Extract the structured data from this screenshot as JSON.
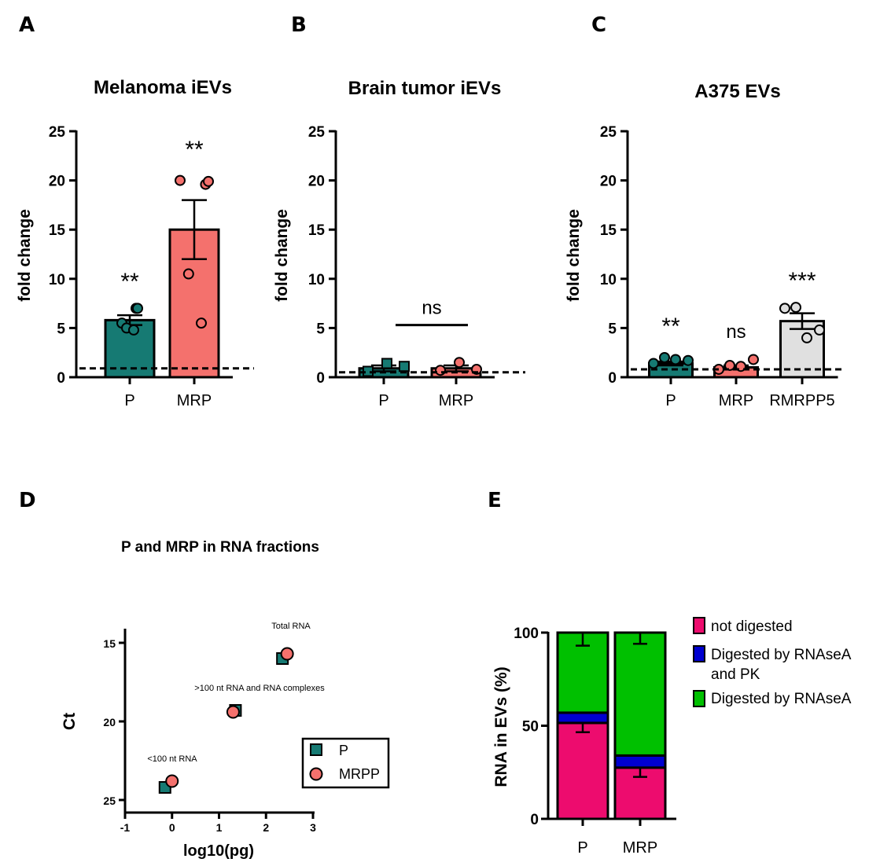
{
  "colors": {
    "teal": "#167a73",
    "salmon": "#f4716d",
    "grey": "#e0e0e0",
    "pink": "#ed0c6e",
    "blue": "#0000d0",
    "green": "#00c000"
  },
  "panels": {
    "A": "A",
    "B": "B",
    "C": "C",
    "D": "D",
    "E": "E"
  },
  "chart_data": [
    {
      "panel": "A",
      "type": "bar",
      "title": "Melanoma iEVs",
      "ylabel": "fold change",
      "ylim": [
        0,
        25
      ],
      "yticks": [
        "0",
        "5",
        "10",
        "15",
        "20",
        "25"
      ],
      "baseline": 0.9,
      "categories": [
        "P",
        "MRP"
      ],
      "values": [
        5.8,
        15.0
      ],
      "errors": [
        0.5,
        3.0
      ],
      "significance": [
        "**",
        "**"
      ],
      "points": [
        [
          5.5,
          7.0,
          7.0,
          5.0,
          4.8
        ],
        [
          20.0,
          19.6,
          19.9,
          10.5,
          5.5
        ]
      ]
    },
    {
      "panel": "B",
      "type": "bar",
      "title": "Brain tumor iEVs",
      "ylabel": "fold change",
      "ylim": [
        0,
        25
      ],
      "yticks": [
        "0",
        "5",
        "10",
        "15",
        "20",
        "25"
      ],
      "baseline": 0.5,
      "categories": [
        "P",
        "MRP"
      ],
      "values": [
        0.9,
        0.9
      ],
      "errors": [
        0.3,
        0.3
      ],
      "comparison_label": "ns",
      "comparison_y": 5.3,
      "points": [
        [
          0.6,
          1.4,
          1.1
        ],
        [
          0.7,
          1.5,
          0.8
        ]
      ]
    },
    {
      "panel": "C",
      "type": "bar",
      "title": "A375 EVs",
      "ylabel": "fold change",
      "ylim": [
        0,
        25
      ],
      "yticks": [
        "0",
        "5",
        "10",
        "15",
        "20",
        "25"
      ],
      "baseline": 0.8,
      "categories": [
        "P",
        "MRP",
        "RMRPP5"
      ],
      "values": [
        1.4,
        1.0,
        5.7
      ],
      "errors": [
        0.2,
        0.2,
        0.8
      ],
      "significance": [
        "**",
        "ns",
        "***"
      ],
      "points": [
        [
          1.4,
          2.0,
          1.8,
          1.7
        ],
        [
          0.8,
          1.2,
          1.1,
          1.8
        ],
        [
          7.0,
          7.1,
          4.0,
          4.8
        ]
      ]
    },
    {
      "panel": "D",
      "type": "scatter",
      "title": "P and MRP in RNA fractions",
      "xlabel": "log10(pg)",
      "ylabel": "Ct",
      "xlim": [
        -1,
        3
      ],
      "ylim": [
        26,
        14
      ],
      "xticks": [
        "-1",
        "0",
        "1",
        "2",
        "3"
      ],
      "yticks": [
        "15",
        "20",
        "25"
      ],
      "series": [
        {
          "name": "P",
          "x": [
            2.35,
            1.35,
            -0.15
          ],
          "y": [
            16.0,
            19.3,
            24.2
          ]
        },
        {
          "name": "MRPP",
          "x": [
            2.45,
            1.3,
            0.0
          ],
          "y": [
            15.7,
            19.4,
            23.8
          ]
        }
      ],
      "annotations": [
        "Total RNA",
        ">100 nt RNA and RNA complexes",
        "<100 nt RNA"
      ]
    },
    {
      "panel": "E",
      "type": "bar",
      "stacked": true,
      "ylabel": "RNA in EVs (%)",
      "ylim": [
        0,
        100
      ],
      "yticks": [
        "0",
        "50",
        "100"
      ],
      "categories": [
        "P",
        "MRP"
      ],
      "series": [
        {
          "name": "not digested",
          "values": [
            51.5,
            27.5
          ],
          "errors": [
            5,
            5
          ]
        },
        {
          "name": "Digested by RNAseA and PK",
          "values": [
            5.5,
            6.5
          ]
        },
        {
          "name": "Digested by RNAseA",
          "values": [
            43.0,
            66.0
          ],
          "errors": [
            7,
            6
          ]
        }
      ]
    }
  ]
}
